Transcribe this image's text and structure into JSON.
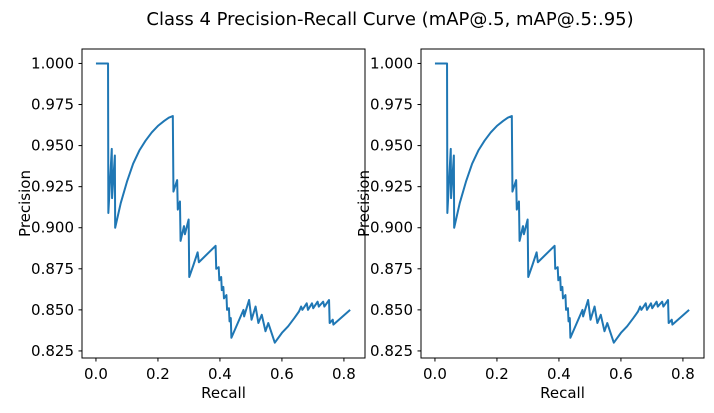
{
  "figure": {
    "title": "Class 4 Precision-Recall Curve (mAP@.5, mAP@.5:.95)",
    "background": "#ffffff",
    "text_color": "#000000",
    "spine_color": "#000000",
    "line_color": "#1f77b4"
  },
  "chart_data": [
    {
      "type": "line",
      "name": "left-subplot",
      "title": "",
      "xlabel": "Recall",
      "ylabel": "Precision",
      "xlim": [
        -0.045,
        0.868
      ],
      "ylim": [
        0.8207,
        1.0088
      ],
      "grid": false,
      "legend": null,
      "xtick_values": [
        0.0,
        0.2,
        0.4,
        0.6,
        0.8
      ],
      "xtick_labels": [
        "0.0",
        "0.2",
        "0.4",
        "0.6",
        "0.8"
      ],
      "ytick_values": [
        0.825,
        0.85,
        0.875,
        0.9,
        0.925,
        0.95,
        0.975,
        1.0
      ],
      "ytick_labels": [
        "0.825",
        "0.850",
        "0.875",
        "0.900",
        "0.925",
        "0.950",
        "0.975",
        "1.000"
      ],
      "series": [
        {
          "name": "precision-recall-curve",
          "color": "#1f77b4",
          "points": [
            [
              0.0,
              1.0
            ],
            [
              0.039,
              1.0
            ],
            [
              0.04,
              0.909
            ],
            [
              0.051,
              0.948
            ],
            [
              0.052,
              0.918
            ],
            [
              0.061,
              0.944
            ],
            [
              0.062,
              0.9
            ],
            [
              0.08,
              0.915
            ],
            [
              0.1,
              0.928
            ],
            [
              0.12,
              0.939
            ],
            [
              0.14,
              0.947
            ],
            [
              0.16,
              0.953
            ],
            [
              0.18,
              0.958
            ],
            [
              0.2,
              0.962
            ],
            [
              0.22,
              0.965
            ],
            [
              0.235,
              0.967
            ],
            [
              0.248,
              0.968
            ],
            [
              0.25,
              0.922
            ],
            [
              0.262,
              0.929
            ],
            [
              0.264,
              0.911
            ],
            [
              0.271,
              0.916
            ],
            [
              0.273,
              0.892
            ],
            [
              0.284,
              0.901
            ],
            [
              0.287,
              0.896
            ],
            [
              0.299,
              0.905
            ],
            [
              0.301,
              0.87
            ],
            [
              0.314,
              0.877
            ],
            [
              0.328,
              0.885
            ],
            [
              0.332,
              0.879
            ],
            [
              0.386,
              0.889
            ],
            [
              0.388,
              0.875
            ],
            [
              0.396,
              0.876
            ],
            [
              0.398,
              0.868
            ],
            [
              0.404,
              0.87
            ],
            [
              0.406,
              0.862
            ],
            [
              0.411,
              0.864
            ],
            [
              0.413,
              0.857
            ],
            [
              0.421,
              0.859
            ],
            [
              0.423,
              0.85
            ],
            [
              0.429,
              0.851
            ],
            [
              0.431,
              0.843
            ],
            [
              0.435,
              0.845
            ],
            [
              0.437,
              0.833
            ],
            [
              0.476,
              0.85
            ],
            [
              0.478,
              0.846
            ],
            [
              0.494,
              0.856
            ],
            [
              0.502,
              0.844
            ],
            [
              0.515,
              0.852
            ],
            [
              0.524,
              0.842
            ],
            [
              0.535,
              0.847
            ],
            [
              0.547,
              0.837
            ],
            [
              0.556,
              0.842
            ],
            [
              0.577,
              0.83
            ],
            [
              0.6,
              0.836
            ],
            [
              0.62,
              0.84
            ],
            [
              0.64,
              0.845
            ],
            [
              0.655,
              0.849
            ],
            [
              0.662,
              0.852
            ],
            [
              0.666,
              0.85
            ],
            [
              0.68,
              0.854
            ],
            [
              0.684,
              0.85
            ],
            [
              0.697,
              0.854
            ],
            [
              0.701,
              0.851
            ],
            [
              0.715,
              0.855
            ],
            [
              0.719,
              0.852
            ],
            [
              0.733,
              0.855
            ],
            [
              0.737,
              0.852
            ],
            [
              0.752,
              0.856
            ],
            [
              0.754,
              0.842
            ],
            [
              0.764,
              0.844
            ],
            [
              0.766,
              0.841
            ],
            [
              0.82,
              0.85
            ]
          ]
        }
      ]
    },
    {
      "type": "line",
      "name": "right-subplot",
      "title": "",
      "xlabel": "Recall",
      "ylabel": "Precision",
      "xlim": [
        -0.045,
        0.868
      ],
      "ylim": [
        0.8207,
        1.0088
      ],
      "grid": false,
      "legend": null,
      "xtick_values": [
        0.0,
        0.2,
        0.4,
        0.6,
        0.8
      ],
      "xtick_labels": [
        "0.0",
        "0.2",
        "0.4",
        "0.6",
        "0.8"
      ],
      "ytick_values": [
        0.825,
        0.85,
        0.875,
        0.9,
        0.925,
        0.95,
        0.975,
        1.0
      ],
      "ytick_labels": [
        "0.825",
        "0.850",
        "0.875",
        "0.900",
        "0.925",
        "0.950",
        "0.975",
        "1.000"
      ],
      "series": [
        {
          "name": "precision-recall-curve",
          "color": "#1f77b4",
          "points": [
            [
              0.0,
              1.0
            ],
            [
              0.039,
              1.0
            ],
            [
              0.04,
              0.909
            ],
            [
              0.051,
              0.948
            ],
            [
              0.052,
              0.918
            ],
            [
              0.061,
              0.944
            ],
            [
              0.062,
              0.9
            ],
            [
              0.08,
              0.915
            ],
            [
              0.1,
              0.928
            ],
            [
              0.12,
              0.939
            ],
            [
              0.14,
              0.947
            ],
            [
              0.16,
              0.953
            ],
            [
              0.18,
              0.958
            ],
            [
              0.2,
              0.962
            ],
            [
              0.22,
              0.965
            ],
            [
              0.235,
              0.967
            ],
            [
              0.248,
              0.968
            ],
            [
              0.25,
              0.922
            ],
            [
              0.262,
              0.929
            ],
            [
              0.264,
              0.911
            ],
            [
              0.271,
              0.916
            ],
            [
              0.273,
              0.892
            ],
            [
              0.284,
              0.901
            ],
            [
              0.287,
              0.896
            ],
            [
              0.299,
              0.905
            ],
            [
              0.301,
              0.87
            ],
            [
              0.314,
              0.877
            ],
            [
              0.328,
              0.885
            ],
            [
              0.332,
              0.879
            ],
            [
              0.386,
              0.889
            ],
            [
              0.388,
              0.875
            ],
            [
              0.396,
              0.876
            ],
            [
              0.398,
              0.868
            ],
            [
              0.404,
              0.87
            ],
            [
              0.406,
              0.862
            ],
            [
              0.411,
              0.864
            ],
            [
              0.413,
              0.857
            ],
            [
              0.421,
              0.859
            ],
            [
              0.423,
              0.85
            ],
            [
              0.429,
              0.851
            ],
            [
              0.431,
              0.843
            ],
            [
              0.435,
              0.845
            ],
            [
              0.437,
              0.833
            ],
            [
              0.476,
              0.85
            ],
            [
              0.478,
              0.846
            ],
            [
              0.494,
              0.856
            ],
            [
              0.502,
              0.844
            ],
            [
              0.515,
              0.852
            ],
            [
              0.524,
              0.842
            ],
            [
              0.535,
              0.847
            ],
            [
              0.547,
              0.837
            ],
            [
              0.556,
              0.842
            ],
            [
              0.577,
              0.83
            ],
            [
              0.6,
              0.836
            ],
            [
              0.62,
              0.84
            ],
            [
              0.64,
              0.845
            ],
            [
              0.655,
              0.849
            ],
            [
              0.662,
              0.852
            ],
            [
              0.666,
              0.85
            ],
            [
              0.68,
              0.854
            ],
            [
              0.684,
              0.85
            ],
            [
              0.697,
              0.854
            ],
            [
              0.701,
              0.851
            ],
            [
              0.715,
              0.855
            ],
            [
              0.719,
              0.852
            ],
            [
              0.733,
              0.855
            ],
            [
              0.737,
              0.852
            ],
            [
              0.752,
              0.856
            ],
            [
              0.754,
              0.842
            ],
            [
              0.764,
              0.844
            ],
            [
              0.766,
              0.841
            ],
            [
              0.82,
              0.85
            ]
          ]
        }
      ]
    }
  ]
}
